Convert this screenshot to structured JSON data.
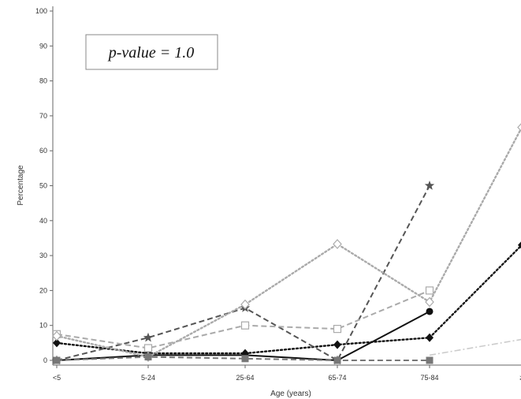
{
  "chart_data": {
    "type": "line",
    "title": "",
    "xlabel": "Age (years)",
    "ylabel": "Percentage",
    "categories": [
      "<5",
      "5-24",
      "25-64",
      "65-74",
      "75-84",
      "≥"
    ],
    "ylim": [
      0,
      100
    ],
    "yticks": [
      0,
      10,
      20,
      30,
      40,
      50,
      60,
      70,
      80,
      90,
      100
    ],
    "grid": false,
    "legend": "none",
    "annotation": "p-value = 1.0",
    "series": [
      {
        "values": [
          0,
          1.5,
          1.5,
          0,
          14,
          null
        ],
        "color": "#111111",
        "dash": "solid",
        "marker": "circle"
      },
      {
        "values": [
          5,
          2,
          2,
          4.5,
          6.5,
          33
        ],
        "color": "#111111",
        "dash": "dotted",
        "marker": "diamond"
      },
      {
        "values": [
          0,
          6.5,
          15,
          0,
          50,
          null
        ],
        "color": "#555555",
        "dash": "dashed",
        "marker": "star"
      },
      {
        "values": [
          7.5,
          3.5,
          10,
          9,
          20,
          null
        ],
        "color": "#aaaaaa",
        "dash": "dashed",
        "marker": "open-square"
      },
      {
        "values": [
          7,
          1,
          16,
          33.3,
          16.7,
          66.7
        ],
        "color": "#aaaaaa",
        "dash": "dotted",
        "marker": "open-diamond"
      },
      {
        "values": [
          0,
          1,
          0.5,
          0,
          0,
          null
        ],
        "color": "#777777",
        "dash": "dashed",
        "marker": "square"
      },
      {
        "values": [
          null,
          null,
          null,
          null,
          1.5,
          6
        ],
        "color": "#cccccc",
        "dash": "dashdot",
        "marker": "none"
      }
    ]
  }
}
